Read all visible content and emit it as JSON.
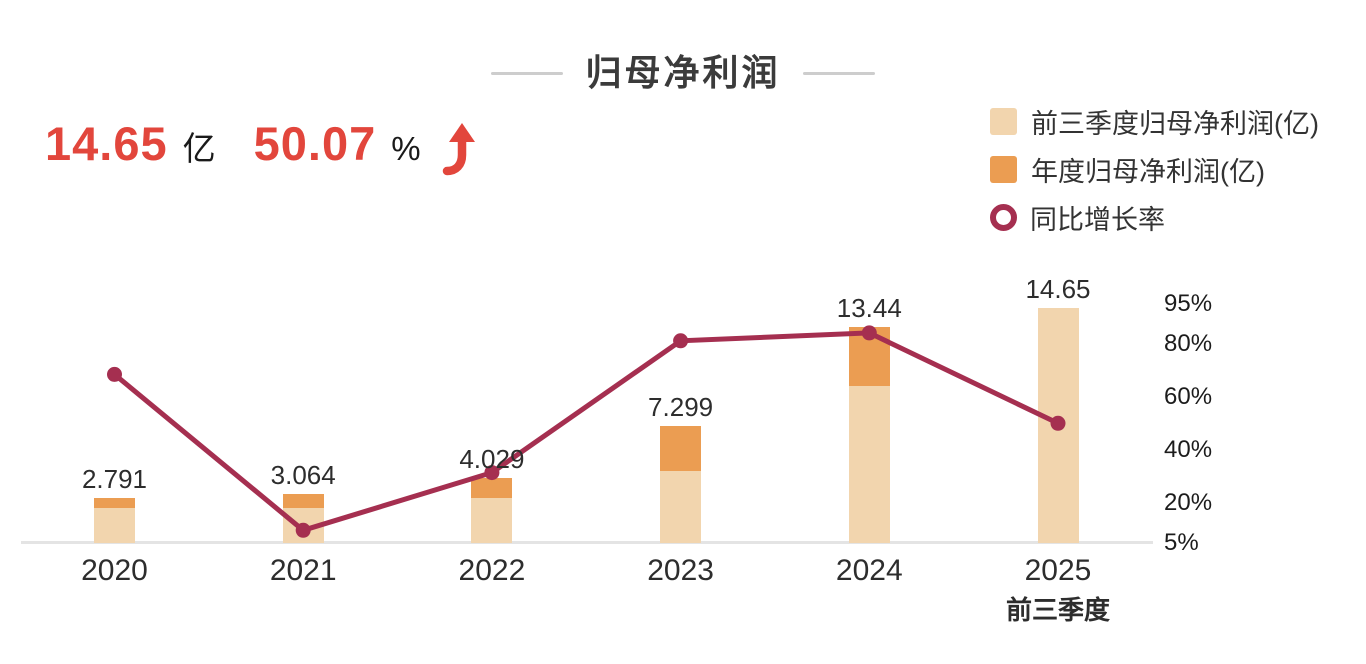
{
  "title": "归母净利润",
  "stat": {
    "value": "14.65",
    "unit": "亿",
    "growth": "50.07",
    "growth_unit": "%"
  },
  "legend": {
    "items": [
      {
        "label": "前三季度归母净利润(亿)",
        "swatch": "square",
        "color": "#f2d5ae"
      },
      {
        "label": "年度归母净利润(亿)",
        "swatch": "square",
        "color": "#eb9d52"
      },
      {
        "label": "同比增长率",
        "swatch": "ring",
        "color": "#a52f50"
      }
    ]
  },
  "chart_data": {
    "type": "bar",
    "subtype": "stacked-bar-with-line",
    "title": "归母净利润",
    "categories": [
      "2020",
      "2021",
      "2022",
      "2023",
      "2024",
      "2025"
    ],
    "category_sublabels": [
      "",
      "",
      "",
      "",
      "",
      "前三季度"
    ],
    "bar_value_labels": [
      "2.791",
      "3.064",
      "4.029",
      "7.299",
      "13.44",
      "14.65"
    ],
    "series": [
      {
        "name": "前三季度归母净利润(亿)",
        "type": "bar",
        "color": "#f2d5ae",
        "values": [
          2.16,
          2.2,
          2.82,
          4.51,
          9.79,
          14.65
        ]
      },
      {
        "name": "年度归母净利润(亿)",
        "type": "bar",
        "color": "#eb9d52",
        "values": [
          2.791,
          3.064,
          4.029,
          7.299,
          13.44,
          null
        ]
      },
      {
        "name": "同比增长率",
        "type": "line",
        "unit": "%",
        "color": "#a52f50",
        "values": [
          68.5,
          9.78,
          31.5,
          81.16,
          84.13,
          50.07
        ]
      }
    ],
    "right_axis": {
      "tick_labels": [
        "95%",
        "80%",
        "60%",
        "40%",
        "20%",
        "5%"
      ],
      "tick_values": [
        95,
        80,
        60,
        40,
        20,
        5
      ]
    },
    "left_axis_range_yi": [
      0,
      14.65
    ],
    "grid": "off",
    "legend_position": "top-right",
    "colors": {
      "bar_light": "#f2d5ae",
      "bar_dark": "#eb9d52",
      "line": "#a52f50",
      "accent_red": "#e2463c",
      "baseline": "#e4e4e4",
      "title_gray": "#3b3b3b"
    }
  }
}
